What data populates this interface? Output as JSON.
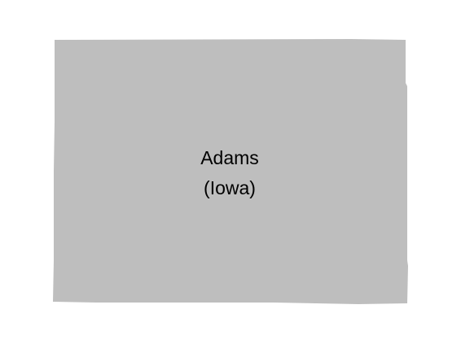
{
  "map": {
    "county_name": "Adams",
    "state_name": "(Iowa)",
    "colors": {
      "background": "#ffffff",
      "county_fill": "#bebebe",
      "label": "#000000"
    }
  }
}
